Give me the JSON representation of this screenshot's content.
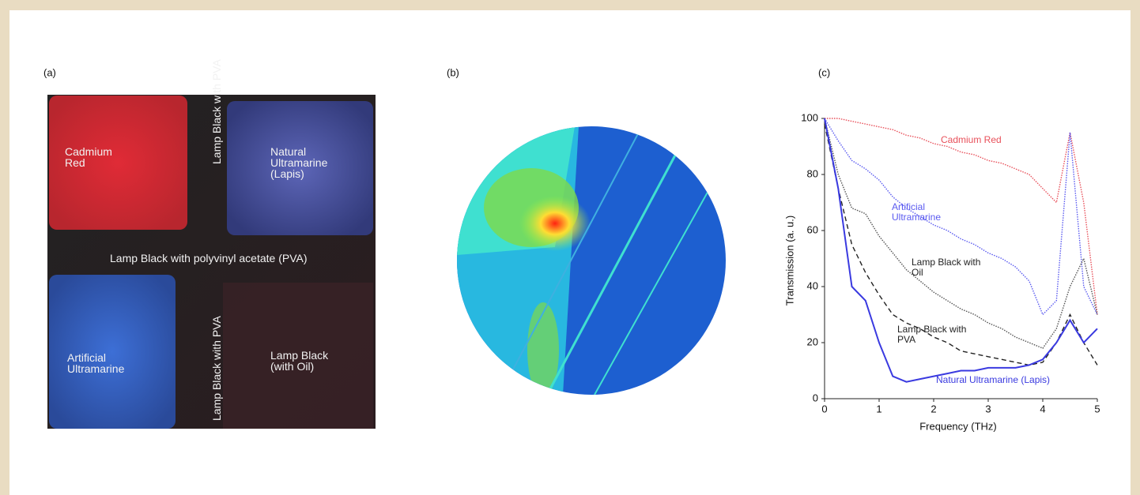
{
  "panel_labels": [
    "(a)",
    "(b)",
    "(c)"
  ],
  "image_a": {
    "labels": [
      "Cadmium Red",
      "Lamp Black with PVA",
      "Natural Ultramarine (Lapis)",
      "Lamp Black with polyvinyl acetate (PVA)",
      "Artificial Ultramarine",
      "Lamp Black with PVA",
      "Lamp Black (with Oil)"
    ]
  },
  "chart_data": {
    "type": "line",
    "xlabel": "Frequency (THz)",
    "ylabel": "Transmission (a. u.)",
    "x": [
      0,
      0.25,
      0.5,
      0.75,
      1,
      1.25,
      1.5,
      1.75,
      2,
      2.25,
      2.5,
      2.75,
      3,
      3.25,
      3.5,
      3.75,
      4,
      4.25,
      4.5,
      4.75,
      5
    ],
    "xlim": [
      0,
      5
    ],
    "ylim": [
      0,
      100
    ],
    "xticks": [
      0,
      1,
      2,
      3,
      4,
      5
    ],
    "yticks": [
      0,
      20,
      40,
      60,
      80,
      100
    ],
    "series": [
      {
        "name": "Cadmium Red",
        "color": "#e8505a",
        "style": "dotted",
        "values": [
          100,
          100,
          99,
          98,
          97,
          96,
          94,
          93,
          91,
          90,
          88,
          87,
          85,
          84,
          82,
          80,
          75,
          70,
          95,
          70,
          30
        ]
      },
      {
        "name": "Artificial Ultramarine",
        "color": "#5a5af0",
        "style": "dotted",
        "values": [
          100,
          92,
          85,
          82,
          78,
          72,
          68,
          65,
          62,
          60,
          57,
          55,
          52,
          50,
          47,
          42,
          30,
          35,
          95,
          40,
          30
        ]
      },
      {
        "name": "Lamp Black with Oil",
        "color": "#555555",
        "style": "dotted",
        "values": [
          100,
          80,
          68,
          66,
          58,
          52,
          46,
          42,
          38,
          35,
          32,
          30,
          27,
          25,
          22,
          20,
          18,
          25,
          40,
          50,
          30
        ]
      },
      {
        "name": "Lamp Black with PVA",
        "color": "#222222",
        "style": "dashed",
        "values": [
          98,
          75,
          55,
          45,
          37,
          30,
          27,
          25,
          22,
          20,
          17,
          16,
          15,
          14,
          13,
          12,
          13,
          20,
          30,
          20,
          12
        ]
      },
      {
        "name": "Natural Ultramarine (Lapis)",
        "color": "#3a3ae0",
        "style": "solid",
        "values": [
          100,
          75,
          40,
          35,
          20,
          8,
          6,
          7,
          8,
          9,
          10,
          10,
          11,
          11,
          11,
          12,
          14,
          20,
          28,
          20,
          25
        ]
      }
    ]
  }
}
